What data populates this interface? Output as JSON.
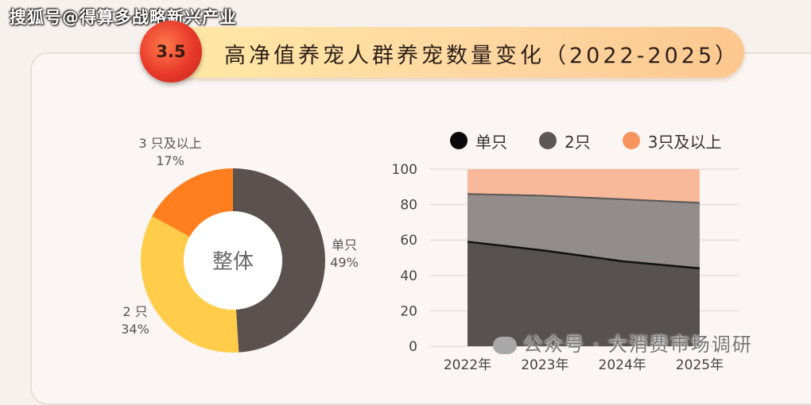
{
  "source_watermark": "搜狐号@得算多战略新兴产业",
  "header": {
    "badge": "3.5",
    "title": "高净值养宠人群养宠数量变化（2022-2025）"
  },
  "footer_watermark": "公众号 · 大消费市场调研",
  "chart_data": [
    {
      "type": "pie",
      "variant": "donut",
      "center_label": "整体",
      "slices": [
        {
          "label": "单只",
          "value": 49,
          "value_label": "49%",
          "color": "#5b5250"
        },
        {
          "label": "2 只",
          "value": 34,
          "value_label": "34%",
          "color": "#ffcd4a"
        },
        {
          "label": "3 只及以上",
          "value": 17,
          "value_label": "17%",
          "color": "#ff7f1e"
        }
      ]
    },
    {
      "type": "area",
      "stacked": true,
      "categories": [
        "2022年",
        "2023年",
        "2024年",
        "2025年"
      ],
      "ylim": [
        0,
        100
      ],
      "yticks": [
        "0",
        "20",
        "40",
        "60",
        "80",
        "100"
      ],
      "grid": true,
      "legend_position": "top",
      "series": [
        {
          "name": "单只",
          "values": [
            59,
            54,
            48,
            44
          ],
          "color": "#575250",
          "legend_color": "#0a0a0a"
        },
        {
          "name": "2只",
          "values": [
            27,
            31,
            35,
            37
          ],
          "color": "#928c8a",
          "legend_color": "#5a5756"
        },
        {
          "name": "3只及以上",
          "values": [
            14,
            15,
            17,
            19
          ],
          "color": "#f8b99a",
          "legend_color": "#f7935d"
        }
      ]
    }
  ]
}
